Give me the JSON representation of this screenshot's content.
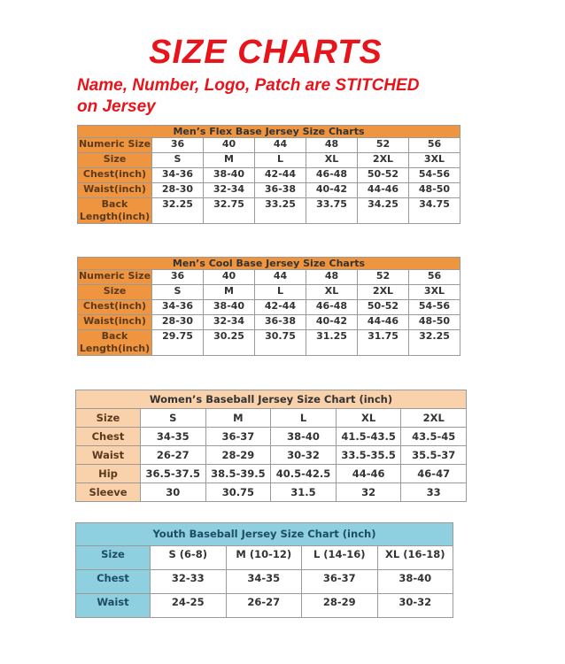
{
  "title": "SIZE CHARTS",
  "subtitle_line1": "Name, Number, Logo, Patch are STITCHED",
  "subtitle_line2": "on Jersey",
  "colors": {
    "title_red": "#e8141b",
    "men_orange": "#f0953f",
    "women_peach": "#f9d1ab",
    "youth_blue": "#8ecfe0"
  },
  "tables": [
    {
      "caption": "Men’s Flex Base Jersey Size Charts",
      "rows": [
        {
          "label": "Numeric Size",
          "values": [
            "36",
            "40",
            "44",
            "48",
            "52",
            "56"
          ]
        },
        {
          "label": "Size",
          "values": [
            "S",
            "M",
            "L",
            "XL",
            "2XL",
            "3XL"
          ]
        },
        {
          "label": "Chest(inch)",
          "values": [
            "34-36",
            "38-40",
            "42-44",
            "46-48",
            "50-52",
            "54-56"
          ]
        },
        {
          "label": "Waist(inch)",
          "values": [
            "28-30",
            "32-34",
            "36-38",
            "40-42",
            "44-46",
            "48-50"
          ]
        },
        {
          "label": "Back Length(inch)",
          "values": [
            "32.25",
            "32.75",
            "33.25",
            "33.75",
            "34.25",
            "34.75"
          ]
        }
      ]
    },
    {
      "caption": "Men’s Cool Base Jersey Size Charts",
      "rows": [
        {
          "label": "Numeric Size",
          "values": [
            "36",
            "40",
            "44",
            "48",
            "52",
            "56"
          ]
        },
        {
          "label": "Size",
          "values": [
            "S",
            "M",
            "L",
            "XL",
            "2XL",
            "3XL"
          ]
        },
        {
          "label": "Chest(inch)",
          "values": [
            "34-36",
            "38-40",
            "42-44",
            "46-48",
            "50-52",
            "54-56"
          ]
        },
        {
          "label": "Waist(inch)",
          "values": [
            "28-30",
            "32-34",
            "36-38",
            "40-42",
            "44-46",
            "48-50"
          ]
        },
        {
          "label": "Back Length(inch)",
          "values": [
            "29.75",
            "30.25",
            "30.75",
            "31.25",
            "31.75",
            "32.25"
          ]
        }
      ]
    },
    {
      "caption": "Women’s Baseball Jersey Size Chart (inch)",
      "rows": [
        {
          "label": "Size",
          "values": [
            "S",
            "M",
            "L",
            "XL",
            "2XL"
          ]
        },
        {
          "label": "Chest",
          "values": [
            "34-35",
            "36-37",
            "38-40",
            "41.5-43.5",
            "43.5-45"
          ]
        },
        {
          "label": "Waist",
          "values": [
            "26-27",
            "28-29",
            "30-32",
            "33.5-35.5",
            "35.5-37"
          ]
        },
        {
          "label": "Hip",
          "values": [
            "36.5-37.5",
            "38.5-39.5",
            "40.5-42.5",
            "44-46",
            "46-47"
          ]
        },
        {
          "label": "Sleeve",
          "values": [
            "30",
            "30.75",
            "31.5",
            "32",
            "33"
          ]
        }
      ]
    },
    {
      "caption": "Youth Baseball Jersey Size Chart (inch)",
      "rows": [
        {
          "label": "Size",
          "values": [
            "S (6-8)",
            "M (10-12)",
            "L (14-16)",
            "XL (16-18)"
          ]
        },
        {
          "label": "Chest",
          "values": [
            "32-33",
            "34-35",
            "36-37",
            "38-40"
          ]
        },
        {
          "label": "Waist",
          "values": [
            "24-25",
            "26-27",
            "28-29",
            "30-32"
          ]
        }
      ]
    }
  ]
}
